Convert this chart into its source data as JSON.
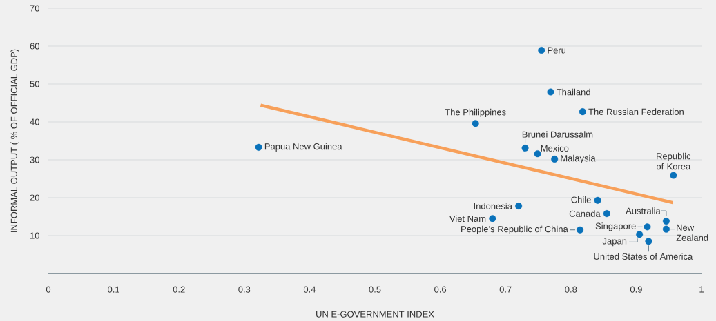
{
  "chart_data": {
    "type": "scatter",
    "xlabel": "UN E-GOVERNMENT INDEX",
    "ylabel": "INFORMAL OUTPUT ( % OF OFFICIAL GDP)",
    "xlim": [
      0,
      1
    ],
    "ylim": [
      0,
      70
    ],
    "xticks": [
      0,
      0.1,
      0.2,
      0.3,
      0.4,
      0.5,
      0.6,
      0.7,
      0.8,
      0.9,
      1
    ],
    "yticks": [
      10,
      20,
      30,
      40,
      50,
      60,
      70
    ],
    "grid": "y",
    "marker": "circle",
    "series": [
      {
        "type": "scatter",
        "color": "#0a72ba",
        "x": [
          0.322,
          0.654,
          0.755,
          0.769,
          0.818,
          0.73,
          0.749,
          0.775,
          0.957,
          0.72,
          0.68,
          0.814,
          0.841,
          0.855,
          0.917,
          0.946,
          0.946,
          0.905,
          0.919
        ],
        "values": [
          33.3,
          39.6,
          58.9,
          47.9,
          42.7,
          33.1,
          31.6,
          30.2,
          25.9,
          17.8,
          14.5,
          11.5,
          19.3,
          15.8,
          12.3,
          13.8,
          11.7,
          10.3,
          8.5
        ]
      },
      {
        "type": "line",
        "marker": "none",
        "color": "#f7a05a",
        "x": [
          0.325,
          0.956
        ],
        "values": [
          44.4,
          18.7
        ]
      }
    ],
    "annotations": [
      {
        "text": "Papua New Guinea",
        "x": 0.322,
        "y": 33.3
      },
      {
        "text": "The Philippines",
        "x": 0.654,
        "y": 39.6
      },
      {
        "text": "Peru",
        "x": 0.755,
        "y": 58.9
      },
      {
        "text": "Thailand",
        "x": 0.769,
        "y": 47.9
      },
      {
        "text": "The Russian Federation",
        "x": 0.818,
        "y": 42.7
      },
      {
        "text": "Brunei Darussalm",
        "x": 0.73,
        "y": 33.1
      },
      {
        "text": "Mexico",
        "x": 0.749,
        "y": 31.6
      },
      {
        "text": "Malaysia",
        "x": 0.775,
        "y": 30.2
      },
      {
        "text": "Republic of Korea",
        "x": 0.957,
        "y": 25.9
      },
      {
        "text": "Indonesia",
        "x": 0.72,
        "y": 17.8
      },
      {
        "text": "Viet Nam",
        "x": 0.68,
        "y": 14.5
      },
      {
        "text": "People’s Republic of China",
        "x": 0.814,
        "y": 11.5
      },
      {
        "text": "Chile",
        "x": 0.841,
        "y": 19.3
      },
      {
        "text": "Canada",
        "x": 0.855,
        "y": 15.8
      },
      {
        "text": "Singapore",
        "x": 0.917,
        "y": 12.3
      },
      {
        "text": "Australia",
        "x": 0.946,
        "y": 13.8
      },
      {
        "text": "New Zealand",
        "x": 0.946,
        "y": 11.7
      },
      {
        "text": "Japan",
        "x": 0.905,
        "y": 10.3
      },
      {
        "text": "United States of America",
        "x": 0.919,
        "y": 8.5
      }
    ]
  }
}
